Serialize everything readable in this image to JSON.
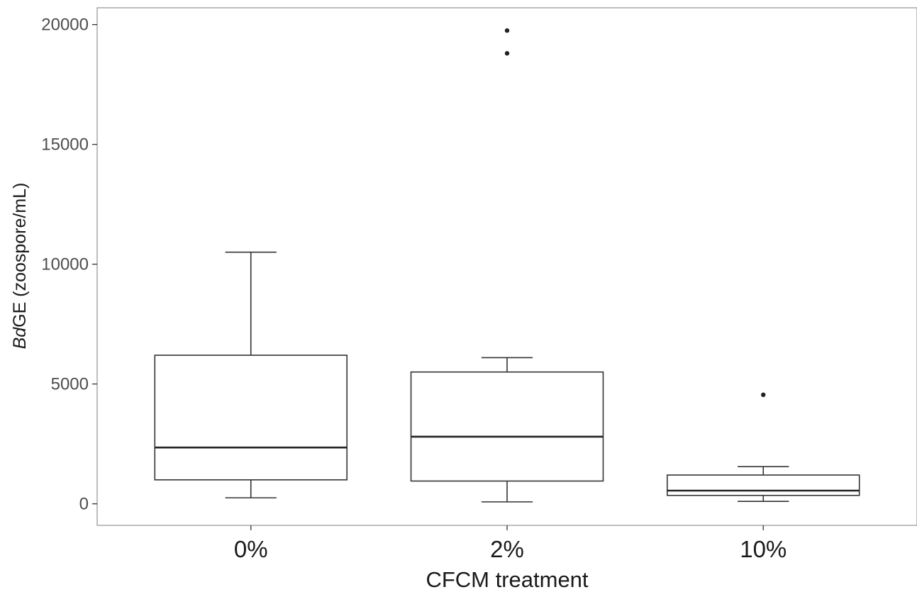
{
  "chart_data": {
    "type": "box",
    "title": "",
    "xlabel": "CFCM treatment",
    "ylabel_italic": "Bd",
    "ylabel_rest": "GE (zoospore/mL)",
    "ylim": [
      -900,
      20700
    ],
    "yticks": [
      0,
      5000,
      10000,
      15000,
      20000
    ],
    "ytick_labels": [
      "0",
      "5000",
      "10000",
      "15000",
      "20000"
    ],
    "categories": [
      "0%",
      "2%",
      "10%"
    ],
    "boxes": [
      {
        "category": "0%",
        "whisker_low": 250,
        "q1": 1000,
        "median": 2350,
        "q3": 6200,
        "whisker_high": 10500,
        "outliers": []
      },
      {
        "category": "2%",
        "whisker_low": 80,
        "q1": 950,
        "median": 2800,
        "q3": 5500,
        "whisker_high": 6100,
        "outliers": [
          18800,
          19750
        ]
      },
      {
        "category": "10%",
        "whisker_low": 100,
        "q1": 350,
        "median": 550,
        "q3": 1200,
        "whisker_high": 1550,
        "outliers": [
          4550
        ]
      }
    ],
    "grid": false,
    "legend": "none"
  }
}
